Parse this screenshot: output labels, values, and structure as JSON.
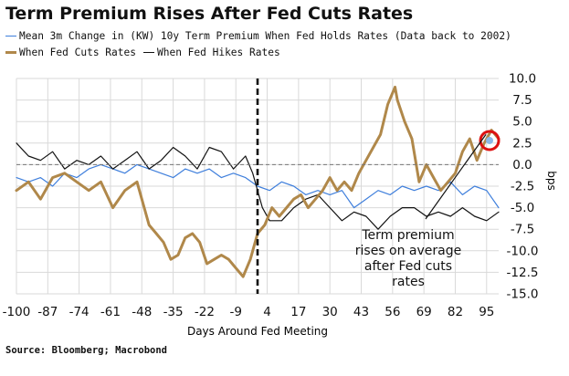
{
  "chart_data": {
    "type": "line",
    "title": "Term Premium Rises After Fed Cuts Rates",
    "xlabel": "Days Around Fed Meeting",
    "ylabel": "bps",
    "xlim": [
      -100,
      100
    ],
    "ylim": [
      -15.0,
      10.0
    ],
    "x_ticks": [
      "-100",
      "-87",
      "-74",
      "-61",
      "-48",
      "-35",
      "-22",
      "-9",
      "4",
      "17",
      "30",
      "43",
      "56",
      "69",
      "82",
      "95"
    ],
    "y_ticks": [
      "10.0",
      "7.5",
      "5.0",
      "2.5",
      "0.0",
      "-2.5",
      "-5.0",
      "-7.5",
      "-10.0",
      "-12.5",
      "-15.0"
    ],
    "event_line_x": 0,
    "zero_line": true,
    "legend": [
      {
        "label": "Mean 3m Change in (KW) 10y Term Premium When Fed Holds Rates (Data back to 2002)",
        "color": "#3f7fdc"
      },
      {
        "label": "When Fed Cuts Rates",
        "color": "#b0884a"
      },
      {
        "label": "When Fed Hikes Rates",
        "color": "#111111"
      }
    ],
    "annotation": {
      "lines": [
        "Term premium",
        "rises on average",
        "after Fed cuts",
        "rates"
      ]
    },
    "series": [
      {
        "name": "When Fed Cuts Rates",
        "color": "#b0884a",
        "x": [
          -100,
          -95,
          -90,
          -85,
          -80,
          -75,
          -70,
          -65,
          -60,
          -55,
          -50,
          -45,
          -42,
          -39,
          -36,
          -33,
          -30,
          -27,
          -24,
          -21,
          -18,
          -15,
          -12,
          -9,
          -6,
          -3,
          0,
          3,
          6,
          9,
          12,
          15,
          18,
          21,
          24,
          27,
          30,
          33,
          36,
          39,
          42,
          45,
          48,
          51,
          54,
          57,
          58,
          61,
          64,
          67,
          70,
          73,
          76,
          79,
          82,
          85,
          88,
          91,
          94,
          97,
          100
        ],
        "values": [
          -3.0,
          -2.0,
          -4.0,
          -1.5,
          -1.0,
          -2.0,
          -3.0,
          -2.0,
          -5.0,
          -3.0,
          -2.0,
          -7.0,
          -8.0,
          -9.0,
          -11.0,
          -10.5,
          -8.5,
          -8.0,
          -9.0,
          -11.5,
          -11.0,
          -10.5,
          -11.0,
          -12.0,
          -13.0,
          -11.0,
          -8.0,
          -7.0,
          -5.0,
          -6.0,
          -5.0,
          -4.0,
          -3.5,
          -5.0,
          -4.0,
          -3.0,
          -1.5,
          -3.0,
          -2.0,
          -3.0,
          -1.0,
          0.5,
          2.0,
          3.5,
          7.0,
          9.0,
          7.5,
          5.0,
          3.0,
          -2.0,
          0.0,
          -1.5,
          -3.0,
          -2.0,
          -1.0,
          1.5,
          3.0,
          0.5,
          2.5,
          4.0,
          3.0
        ]
      },
      {
        "name": "When Fed Hikes Rates",
        "color": "#111111",
        "x": [
          -100,
          -95,
          -90,
          -85,
          -80,
          -75,
          -70,
          -65,
          -60,
          -55,
          -50,
          -45,
          -40,
          -35,
          -30,
          -25,
          -20,
          -15,
          -10,
          -5,
          -2,
          2,
          5,
          10,
          15,
          20,
          25,
          30,
          35,
          40,
          45,
          50,
          55,
          60,
          65,
          70,
          75,
          80,
          85,
          90,
          95,
          100
        ],
        "values": [
          2.5,
          1.0,
          0.5,
          1.5,
          -0.5,
          0.5,
          0.0,
          1.0,
          -0.5,
          0.5,
          1.5,
          -0.5,
          0.5,
          2.0,
          1.0,
          -0.5,
          2.0,
          1.5,
          -0.5,
          1.0,
          -1.0,
          -5.0,
          -6.5,
          -6.5,
          -5.0,
          -4.0,
          -3.5,
          -5.0,
          -6.5,
          -5.5,
          -6.0,
          -7.5,
          -6.0,
          -5.0,
          -5.0,
          -6.0,
          -5.5,
          -6.0,
          -5.0,
          -6.0,
          -6.5,
          -5.5
        ]
      },
      {
        "name": "Mean 3m Change in (KW) 10y Term Premium When Fed Holds Rates (Data back to 2002)",
        "color": "#3f7fdc",
        "x": [
          -100,
          -95,
          -90,
          -85,
          -80,
          -75,
          -70,
          -65,
          -60,
          -55,
          -50,
          -45,
          -40,
          -35,
          -30,
          -25,
          -20,
          -15,
          -10,
          -5,
          0,
          5,
          10,
          15,
          20,
          25,
          30,
          35,
          40,
          45,
          50,
          55,
          60,
          65,
          70,
          75,
          80,
          85,
          90,
          95,
          100
        ],
        "values": [
          -1.5,
          -2.0,
          -1.5,
          -2.5,
          -1.0,
          -1.5,
          -0.5,
          0.0,
          -0.5,
          -1.0,
          0.0,
          -0.5,
          -1.0,
          -1.5,
          -0.5,
          -1.0,
          -0.5,
          -1.5,
          -1.0,
          -1.5,
          -2.5,
          -3.0,
          -2.0,
          -2.5,
          -3.5,
          -3.0,
          -3.5,
          -3.0,
          -5.0,
          -4.0,
          -3.0,
          -3.5,
          -2.5,
          -3.0,
          -2.5,
          -3.0,
          -2.0,
          -3.5,
          -2.5,
          -3.0,
          -5.0
        ]
      }
    ]
  },
  "source": "Source: Bloomberg; Macrobond"
}
